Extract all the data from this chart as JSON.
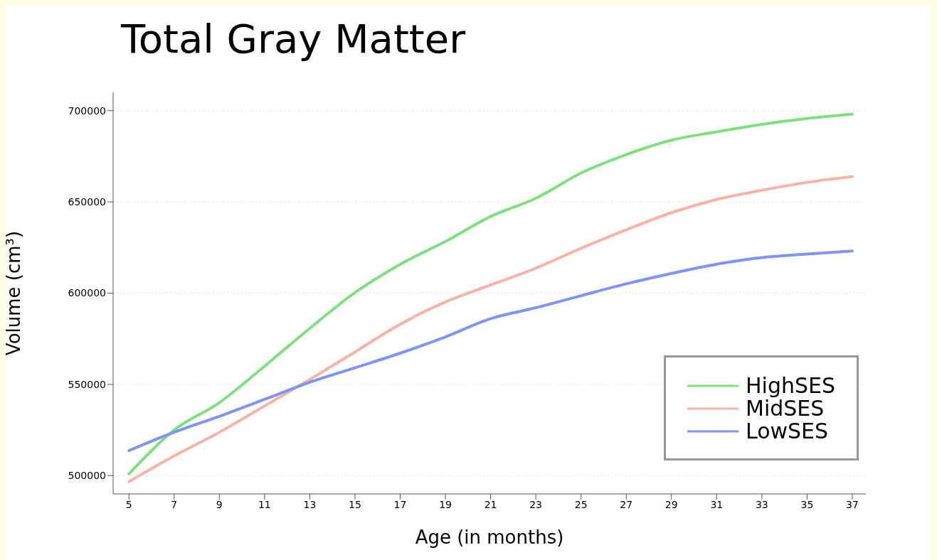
{
  "chart_data": {
    "type": "line",
    "title": "Total Gray Matter",
    "xlabel": "Age (in months)",
    "ylabel": "Volume (cm³)",
    "x": [
      5,
      7,
      9,
      11,
      13,
      15,
      17,
      19,
      21,
      23,
      25,
      27,
      29,
      31,
      33,
      35,
      37
    ],
    "series": [
      {
        "name": "HighSES",
        "color": "#7ee07e",
        "values": [
          501000,
          525000,
          540000,
          560000,
          580700,
          600300,
          615800,
          628300,
          642000,
          652000,
          665800,
          675900,
          683800,
          688400,
          692500,
          695700,
          698000
        ]
      },
      {
        "name": "MidSES",
        "color": "#f7b3a8",
        "values": [
          496700,
          510800,
          523800,
          538200,
          552700,
          567800,
          583000,
          595200,
          604500,
          613700,
          624600,
          634700,
          644100,
          651300,
          656400,
          660700,
          663900
        ]
      },
      {
        "name": "LowSES",
        "color": "#8094f5",
        "values": [
          513700,
          523800,
          532500,
          541800,
          551200,
          559100,
          567100,
          576000,
          586000,
          592000,
          598600,
          605100,
          610800,
          615900,
          619500,
          621400,
          623100
        ]
      }
    ],
    "xlim": [
      4.3,
      37.6
    ],
    "ylim": [
      490000,
      710000
    ],
    "xticks": [
      5,
      7,
      9,
      11,
      13,
      15,
      17,
      19,
      21,
      23,
      25,
      27,
      29,
      31,
      33,
      35,
      37
    ],
    "yticks": [
      500000,
      550000,
      600000,
      650000,
      700000
    ],
    "grid": "y",
    "legend": "bottom right",
    "marker": "none",
    "line_style": "solid"
  }
}
